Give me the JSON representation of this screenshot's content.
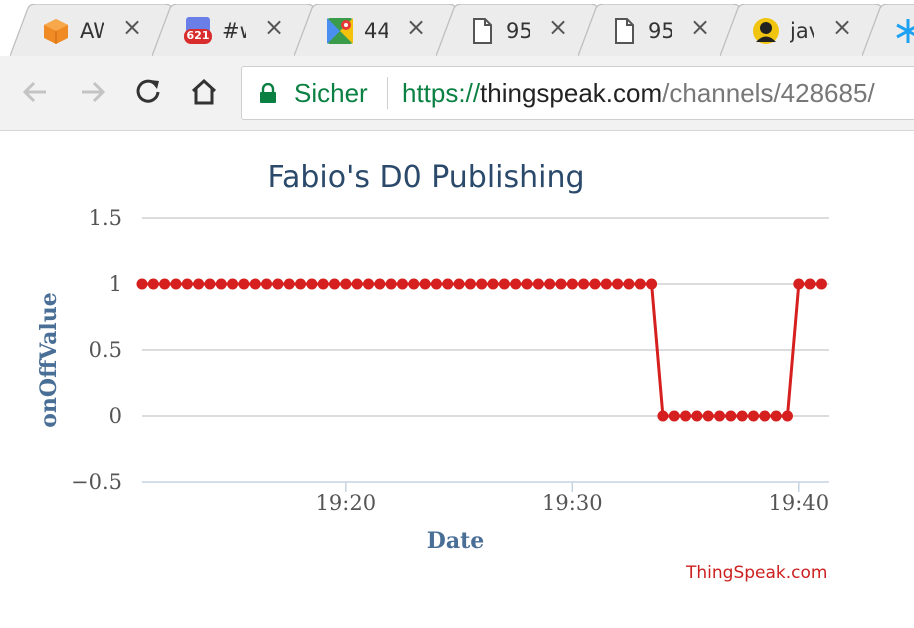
{
  "browser": {
    "tabs": [
      {
        "favicon": "orange-cube-icon",
        "title": "AWS"
      },
      {
        "favicon": "chat-badge-icon",
        "badge": "621",
        "title": "#w"
      },
      {
        "favicon": "google-maps-icon",
        "title": "44"
      },
      {
        "favicon": "document-icon",
        "title": "95"
      },
      {
        "favicon": "document-icon",
        "title": "95"
      },
      {
        "favicon": "avatar-icon",
        "title": "jav"
      },
      {
        "favicon": "snowflake-icon",
        "title": ""
      }
    ],
    "secure_label": "Sicher",
    "url": {
      "scheme": "https://",
      "host": "thingspeak.com",
      "path": "/channels/428685/"
    }
  },
  "chart_data": {
    "type": "line",
    "title": "Fabio's D0 Publishing",
    "xlabel": "Date",
    "ylabel": "onOffValue",
    "ylim": [
      -0.5,
      1.5
    ],
    "yticks": [
      "1.5",
      "1",
      "0.5",
      "0",
      "−0.5"
    ],
    "ytick_values": [
      1.5,
      1,
      0.5,
      0,
      -0.5
    ],
    "xticks": [
      "19:20",
      "19:30",
      "19:40"
    ],
    "xtick_values": [
      "19:20",
      "19:30",
      "19:40"
    ],
    "xlim": [
      "19:11",
      "19:41:20"
    ],
    "grid": true,
    "color": "#d62020",
    "series": [
      {
        "name": "",
        "x": [
          "19:11:00",
          "19:11:30",
          "19:12:00",
          "19:12:30",
          "19:13:00",
          "19:13:30",
          "19:14:00",
          "19:14:30",
          "19:15:00",
          "19:15:30",
          "19:16:00",
          "19:16:30",
          "19:17:00",
          "19:17:30",
          "19:18:00",
          "19:18:30",
          "19:19:00",
          "19:19:30",
          "19:20:00",
          "19:20:30",
          "19:21:00",
          "19:21:30",
          "19:22:00",
          "19:22:30",
          "19:23:00",
          "19:23:30",
          "19:24:00",
          "19:24:30",
          "19:25:00",
          "19:25:30",
          "19:26:00",
          "19:26:30",
          "19:27:00",
          "19:27:30",
          "19:28:00",
          "19:28:30",
          "19:29:00",
          "19:29:30",
          "19:30:00",
          "19:30:30",
          "19:31:00",
          "19:31:30",
          "19:32:00",
          "19:32:30",
          "19:33:00",
          "19:33:30",
          "19:34:00",
          "19:34:30",
          "19:35:00",
          "19:35:30",
          "19:36:00",
          "19:36:30",
          "19:37:00",
          "19:37:30",
          "19:38:00",
          "19:38:30",
          "19:39:00",
          "19:39:30",
          "19:40:00",
          "19:40:30",
          "19:41:00"
        ],
        "values": [
          1,
          1,
          1,
          1,
          1,
          1,
          1,
          1,
          1,
          1,
          1,
          1,
          1,
          1,
          1,
          1,
          1,
          1,
          1,
          1,
          1,
          1,
          1,
          1,
          1,
          1,
          1,
          1,
          1,
          1,
          1,
          1,
          1,
          1,
          1,
          1,
          1,
          1,
          1,
          1,
          1,
          1,
          1,
          1,
          1,
          1,
          0,
          0,
          0,
          0,
          0,
          0,
          0,
          0,
          0,
          0,
          0,
          0,
          1,
          1,
          1
        ]
      }
    ]
  },
  "watermark": "ThingSpeak.com"
}
